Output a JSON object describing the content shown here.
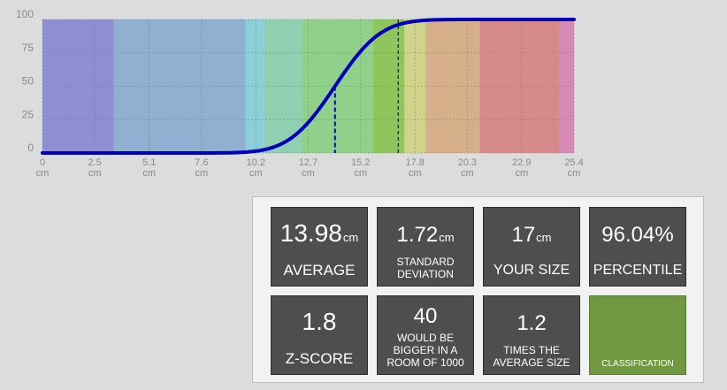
{
  "chart_data": {
    "type": "line",
    "x_ticks": [
      {
        "value": "0",
        "unit": "cm"
      },
      {
        "value": "2.5",
        "unit": "cm"
      },
      {
        "value": "5.1",
        "unit": "cm"
      },
      {
        "value": "7.6",
        "unit": "cm"
      },
      {
        "value": "10.2",
        "unit": "cm"
      },
      {
        "value": "12.7",
        "unit": "cm"
      },
      {
        "value": "15.2",
        "unit": "cm"
      },
      {
        "value": "17.8",
        "unit": "cm"
      },
      {
        "value": "20.3",
        "unit": "cm"
      },
      {
        "value": "22.9",
        "unit": "cm"
      },
      {
        "value": "25.4",
        "unit": "cm"
      }
    ],
    "y_ticks": [
      "0",
      "25",
      "50",
      "75",
      "100"
    ],
    "xlim": [
      0,
      25.4
    ],
    "ylim": [
      0,
      100
    ],
    "grid": true,
    "mean": 13.98,
    "sd": 1.72,
    "marker_mean": 13.98,
    "marker_user": 17,
    "bands": [
      {
        "from": 0,
        "to": 3.4,
        "color": "#8e8ed2"
      },
      {
        "from": 3.4,
        "to": 9.7,
        "color": "#90b0d2"
      },
      {
        "from": 9.7,
        "to": 10.6,
        "color": "#8ccfd6"
      },
      {
        "from": 10.6,
        "to": 12.4,
        "color": "#8ed0b0"
      },
      {
        "from": 12.4,
        "to": 15.8,
        "color": "#8fd18a"
      },
      {
        "from": 15.8,
        "to": 17.3,
        "color": "#8ec55c"
      },
      {
        "from": 17.3,
        "to": 18.3,
        "color": "#cfd48a"
      },
      {
        "from": 18.3,
        "to": 20.9,
        "color": "#d6b08a"
      },
      {
        "from": 20.9,
        "to": 24.7,
        "color": "#d68a8a"
      },
      {
        "from": 24.7,
        "to": 25.4,
        "color": "#d48ab4"
      }
    ],
    "curve_color": "#0000bb"
  },
  "stats": {
    "average": {
      "value": "13.98",
      "unit": "cm",
      "label": "AVERAGE"
    },
    "std_dev": {
      "value": "1.72",
      "unit": "cm",
      "label_line1": "STANDARD",
      "label_line2": "DEVIATION"
    },
    "your_size": {
      "value": "17",
      "unit": "cm",
      "label": "YOUR SIZE"
    },
    "percentile": {
      "value": "96.04%",
      "label": "PERCENTILE"
    },
    "z_score": {
      "value": "1.8",
      "label": "Z-SCORE"
    },
    "bigger": {
      "value": "40",
      "line1": "WOULD BE",
      "line2": "BIGGER IN A",
      "line3": "ROOM OF 1000"
    },
    "times_avg": {
      "value": "1.2",
      "line1": "TIMES THE",
      "line2": "AVERAGE SIZE"
    },
    "classification": {
      "label": "CLASSIFICATION",
      "color": "#6f9840"
    }
  }
}
